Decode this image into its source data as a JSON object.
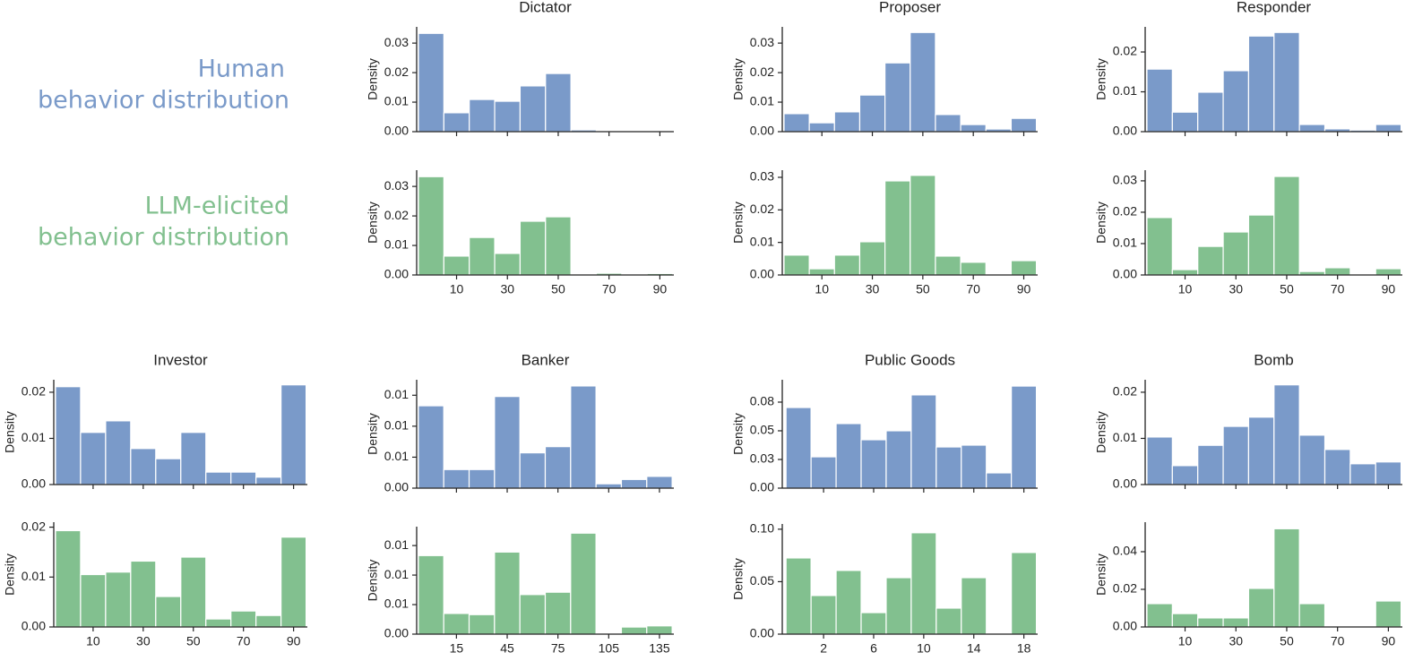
{
  "legend": {
    "human": [
      "Human",
      "behavior distribution"
    ],
    "human_color": "#7a9ac9",
    "llm": [
      "LLM-elicited",
      "behavior distribution"
    ],
    "llm_color": "#82c08f"
  },
  "chart_data": [
    {
      "type": "histogram",
      "title": "Dictator",
      "ylabel": "Density",
      "color": "#7a9ac9",
      "bins": [
        -5,
        5,
        15,
        25,
        35,
        45,
        55,
        65,
        75,
        85,
        95
      ],
      "values": [
        0.0333,
        0.0064,
        0.0109,
        0.0103,
        0.0155,
        0.0197,
        0.0006,
        0.0003,
        0.0001,
        0.0002
      ],
      "xlim": [
        -5.7,
        95.5
      ],
      "xticks": [
        10,
        30,
        50,
        70,
        90
      ],
      "show_xtick_labels": false,
      "ylim": [
        0,
        0.0355
      ],
      "yticks": [
        {
          "value": 0,
          "label": "0.00"
        },
        {
          "value": 0.01,
          "label": "0.01"
        },
        {
          "value": 0.02,
          "label": "0.02"
        },
        {
          "value": 0.03,
          "label": "0.03"
        }
      ]
    },
    {
      "type": "histogram",
      "ylabel": "Density",
      "color": "#82c08f",
      "bins": [
        -5,
        5,
        15,
        25,
        35,
        45,
        55,
        65,
        75,
        85,
        95
      ],
      "values": [
        0.0333,
        0.0064,
        0.0127,
        0.0073,
        0.0182,
        0.0197,
        0,
        0.0006,
        0,
        0.0005
      ],
      "xlim": [
        -5.7,
        95.5
      ],
      "xticks": [
        10,
        30,
        50,
        70,
        90
      ],
      "show_xtick_labels": true,
      "ylim": [
        0,
        0.0355
      ],
      "yticks": [
        {
          "value": 0,
          "label": "0.00"
        },
        {
          "value": 0.01,
          "label": "0.01"
        },
        {
          "value": 0.02,
          "label": "0.02"
        },
        {
          "value": 0.03,
          "label": "0.03"
        }
      ]
    },
    {
      "type": "histogram",
      "title": "Proposer",
      "ylabel": "Density",
      "color": "#7a9ac9",
      "bins": [
        -5,
        5,
        15,
        25,
        35,
        45,
        55,
        65,
        75,
        85,
        95
      ],
      "values": [
        0.0061,
        0.003,
        0.0067,
        0.0124,
        0.0233,
        0.0336,
        0.0058,
        0.0024,
        0.0009,
        0.0045
      ],
      "xlim": [
        -5.7,
        95.5
      ],
      "xticks": [
        10,
        30,
        50,
        70,
        90
      ],
      "show_xtick_labels": false,
      "ylim": [
        0,
        0.0355
      ],
      "yticks": [
        {
          "value": 0,
          "label": "0.00"
        },
        {
          "value": 0.01,
          "label": "0.01"
        },
        {
          "value": 0.02,
          "label": "0.02"
        },
        {
          "value": 0.03,
          "label": "0.03"
        }
      ]
    },
    {
      "type": "histogram",
      "ylabel": "Density",
      "color": "#82c08f",
      "bins": [
        -5,
        5,
        15,
        25,
        35,
        45,
        55,
        65,
        75,
        85,
        95
      ],
      "values": [
        0.0061,
        0.0019,
        0.0061,
        0.0102,
        0.0289,
        0.0306,
        0.0058,
        0.0039,
        0,
        0.0044
      ],
      "xlim": [
        -5.7,
        95.5
      ],
      "xticks": [
        10,
        30,
        50,
        70,
        90
      ],
      "show_xtick_labels": true,
      "ylim": [
        0,
        0.0322
      ],
      "yticks": [
        {
          "value": 0,
          "label": "0.00"
        },
        {
          "value": 0.01,
          "label": "0.01"
        },
        {
          "value": 0.02,
          "label": "0.02"
        },
        {
          "value": 0.03,
          "label": "0.03"
        }
      ]
    },
    {
      "type": "histogram",
      "title": "Responder",
      "ylabel": "Density",
      "color": "#7a9ac9",
      "bins": [
        -5,
        5,
        15,
        25,
        35,
        45,
        55,
        65,
        75,
        85,
        95
      ],
      "values": [
        0.0157,
        0.0049,
        0.0099,
        0.0153,
        0.024,
        0.0249,
        0.0018,
        0.0007,
        0.0004,
        0.0018
      ],
      "xlim": [
        -5.7,
        95.5
      ],
      "xticks": [
        10,
        30,
        50,
        70,
        90
      ],
      "show_xtick_labels": false,
      "ylim": [
        0,
        0.0263
      ],
      "yticks": [
        {
          "value": 0,
          "label": "0.00"
        },
        {
          "value": 0.01,
          "label": "0.01"
        },
        {
          "value": 0.02,
          "label": "0.02"
        }
      ]
    },
    {
      "type": "histogram",
      "ylabel": "Density",
      "color": "#82c08f",
      "bins": [
        -5,
        5,
        15,
        25,
        35,
        45,
        55,
        65,
        75,
        85,
        95
      ],
      "values": [
        0.0183,
        0.0017,
        0.0091,
        0.0137,
        0.0191,
        0.0314,
        0.0011,
        0.0023,
        0,
        0.002
      ],
      "xlim": [
        -5.7,
        95.5
      ],
      "xticks": [
        10,
        30,
        50,
        70,
        90
      ],
      "show_xtick_labels": true,
      "ylim": [
        0,
        0.0334
      ],
      "yticks": [
        {
          "value": 0,
          "label": "0.00"
        },
        {
          "value": 0.01,
          "label": "0.01"
        },
        {
          "value": 0.02,
          "label": "0.02"
        },
        {
          "value": 0.03,
          "label": "0.03"
        }
      ]
    },
    {
      "type": "histogram",
      "title": "Investor",
      "ylabel": "Density",
      "color": "#7a9ac9",
      "bins": [
        -5,
        5,
        15,
        25,
        35,
        45,
        55,
        65,
        75,
        85,
        95
      ],
      "values": [
        0.0212,
        0.0113,
        0.0138,
        0.0078,
        0.0056,
        0.0113,
        0.0027,
        0.0027,
        0.0016,
        0.0216
      ],
      "xlim": [
        -5.7,
        95.5
      ],
      "xticks": [
        10,
        30,
        50,
        70,
        90
      ],
      "show_xtick_labels": false,
      "ylim": [
        0,
        0.0227
      ],
      "yticks": [
        {
          "value": 0,
          "label": "0.00"
        },
        {
          "value": 0.01,
          "label": "0.01"
        },
        {
          "value": 0.02,
          "label": "0.02"
        }
      ]
    },
    {
      "type": "histogram",
      "ylabel": "Density",
      "color": "#82c08f",
      "bins": [
        -5,
        5,
        15,
        25,
        35,
        45,
        55,
        65,
        75,
        85,
        95
      ],
      "values": [
        0.0193,
        0.0105,
        0.011,
        0.0132,
        0.0061,
        0.014,
        0.0016,
        0.0032,
        0.0023,
        0.018
      ],
      "xlim": [
        -5.7,
        95.5
      ],
      "xticks": [
        10,
        30,
        50,
        70,
        90
      ],
      "show_xtick_labels": true,
      "ylim": [
        0,
        0.021
      ],
      "yticks": [
        {
          "value": 0,
          "label": "0.00"
        },
        {
          "value": 0.01,
          "label": "0.01"
        },
        {
          "value": 0.02,
          "label": "0.02"
        }
      ]
    },
    {
      "type": "histogram",
      "title": "Banker",
      "ylabel": "Density",
      "color": "#7a9ac9",
      "bins": [
        -7.5,
        7.5,
        22.5,
        37.5,
        52.5,
        67.5,
        82.5,
        97.5,
        112.5,
        127.5,
        142.5
      ],
      "values": [
        0.0133,
        0.003,
        0.003,
        0.0148,
        0.0057,
        0.0067,
        0.0165,
        0.0007,
        0.0014,
        0.0019
      ],
      "xlim": [
        -8.5,
        143.5
      ],
      "xticks": [
        15,
        45,
        75,
        105,
        135
      ],
      "show_xtick_labels": false,
      "ylim": [
        0,
        0.0175
      ],
      "yticks": [
        {
          "value": 0,
          "label": "0.00"
        },
        {
          "value": 0.005,
          "label": "0.01"
        },
        {
          "value": 0.01,
          "label": "0.01"
        },
        {
          "value": 0.015,
          "label": "0.01"
        }
      ]
    },
    {
      "type": "histogram",
      "ylabel": "Density",
      "color": "#82c08f",
      "bins": [
        -7.5,
        7.5,
        22.5,
        37.5,
        52.5,
        67.5,
        82.5,
        97.5,
        112.5,
        127.5,
        142.5
      ],
      "values": [
        0.0133,
        0.0035,
        0.0033,
        0.0139,
        0.0067,
        0.0071,
        0.0171,
        0,
        0.0012,
        0.0014
      ],
      "xlim": [
        -8.5,
        143.5
      ],
      "xticks": [
        15,
        45,
        75,
        105,
        135
      ],
      "show_xtick_labels": true,
      "ylim": [
        0,
        0.0182
      ],
      "yticks": [
        {
          "value": 0,
          "label": "0.00"
        },
        {
          "value": 0.005,
          "label": "0.01"
        },
        {
          "value": 0.01,
          "label": "0.01"
        },
        {
          "value": 0.015,
          "label": "0.01"
        }
      ]
    },
    {
      "type": "histogram",
      "title": "Public Goods",
      "ylabel": "Density",
      "color": "#7a9ac9",
      "bins": [
        -1,
        1,
        3,
        5,
        7,
        9,
        11,
        13,
        15,
        17,
        19
      ],
      "values": [
        0.0703,
        0.0273,
        0.0563,
        0.0422,
        0.05,
        0.0813,
        0.0359,
        0.0375,
        0.0133,
        0.089
      ],
      "xlim": [
        -1.3,
        19.1
      ],
      "xticks": [
        2,
        6,
        10,
        14,
        18
      ],
      "show_xtick_labels": false,
      "ylim": [
        0,
        0.0945
      ],
      "yticks": [
        {
          "value": 0,
          "label": "0.00"
        },
        {
          "value": 0.025,
          "label": "0.03"
        },
        {
          "value": 0.05,
          "label": "0.05"
        },
        {
          "value": 0.075,
          "label": "0.08"
        }
      ]
    },
    {
      "type": "histogram",
      "ylabel": "Density",
      "color": "#82c08f",
      "bins": [
        -1,
        1,
        3,
        5,
        7,
        9,
        11,
        13,
        15,
        17,
        19
      ],
      "values": [
        0.0726,
        0.0368,
        0.0607,
        0.0205,
        0.0538,
        0.0966,
        0.0248,
        0.0538,
        0.0009,
        0.0778
      ],
      "xlim": [
        -1.3,
        19.1
      ],
      "xticks": [
        2,
        6,
        10,
        14,
        18
      ],
      "show_xtick_labels": true,
      "ylim": [
        0,
        0.105
      ],
      "yticks": [
        {
          "value": 0,
          "label": "0.00"
        },
        {
          "value": 0.05,
          "label": "0.05"
        },
        {
          "value": 0.1,
          "label": "0.10"
        }
      ]
    },
    {
      "type": "histogram",
      "title": "Bomb",
      "ylabel": "Density",
      "color": "#7a9ac9",
      "bins": [
        -5,
        5,
        15,
        25,
        35,
        45,
        55,
        65,
        75,
        85,
        95
      ],
      "values": [
        0.0103,
        0.0041,
        0.0085,
        0.0126,
        0.0146,
        0.0216,
        0.0107,
        0.0076,
        0.0045,
        0.0049
      ],
      "xlim": [
        -5.7,
        95.5
      ],
      "xticks": [
        10,
        30,
        50,
        70,
        90
      ],
      "show_xtick_labels": false,
      "ylim": [
        0,
        0.0227
      ],
      "yticks": [
        {
          "value": 0,
          "label": "0.00"
        },
        {
          "value": 0.01,
          "label": "0.01"
        },
        {
          "value": 0.02,
          "label": "0.02"
        }
      ]
    },
    {
      "type": "histogram",
      "ylabel": "Density",
      "color": "#82c08f",
      "bins": [
        -5,
        5,
        15,
        25,
        35,
        45,
        55,
        65,
        75,
        85,
        95
      ],
      "values": [
        0.0124,
        0.0071,
        0.0048,
        0.0048,
        0.0205,
        0.0522,
        0.0124,
        0.0005,
        0,
        0.0138
      ],
      "xlim": [
        -5.7,
        95.5
      ],
      "xticks": [
        10,
        30,
        50,
        70,
        90
      ],
      "show_xtick_labels": true,
      "ylim": [
        0,
        0.0557
      ],
      "yticks": [
        {
          "value": 0,
          "label": "0.00"
        },
        {
          "value": 0.02,
          "label": "0.02"
        },
        {
          "value": 0.04,
          "label": "0.04"
        }
      ]
    }
  ]
}
